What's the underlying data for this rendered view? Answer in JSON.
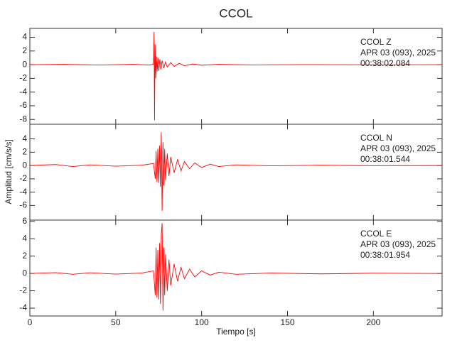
{
  "figure": {
    "title": "CCOL",
    "x_label": "Tiempo [s]",
    "y_label": "Amplitud [cm/s/s]"
  },
  "chart_data": [
    {
      "type": "line",
      "annotations": [
        "CCOL   Z",
        "APR 03 (093), 2025",
        "00:38:02.084"
      ],
      "xlim": [
        0,
        240
      ],
      "xticks": [
        0,
        50,
        100,
        150,
        200
      ],
      "ylim": [
        -8.7,
        5.3
      ],
      "yticks": [
        -8,
        -6,
        -4,
        -2,
        0,
        2,
        4
      ],
      "series": [
        {
          "color": "#ff0000",
          "x": [
            0,
            20,
            40,
            60,
            70,
            72,
            72.3,
            72.6,
            72.9,
            73.3,
            73.7,
            74.1,
            74.6,
            75.1,
            75.7,
            76.3,
            77,
            78,
            79,
            80,
            82,
            84,
            87,
            90,
            95,
            100,
            110,
            130,
            160,
            200,
            240
          ],
          "values": [
            0,
            0.05,
            -0.05,
            0.05,
            -0.05,
            0.1,
            4.8,
            -8.1,
            3,
            -2,
            1.2,
            -1,
            1,
            -0.9,
            0.8,
            -0.7,
            0.6,
            -0.5,
            0.4,
            -0.35,
            0.3,
            -0.25,
            0.2,
            -0.15,
            0.1,
            -0.08,
            0.05,
            -0.03,
            0.02,
            -0.02,
            0
          ]
        }
      ]
    },
    {
      "type": "line",
      "annotations": [
        "CCOL   N",
        "APR 03 (093), 2025",
        "00:38:01.544"
      ],
      "xlim": [
        0,
        240
      ],
      "xticks": [
        0,
        50,
        100,
        150,
        200
      ],
      "ylim": [
        -8.2,
        6.2
      ],
      "yticks": [
        -6,
        -4,
        -2,
        0,
        2,
        4
      ],
      "series": [
        {
          "color": "#ff0000",
          "x": [
            0,
            15,
            25,
            35,
            50,
            65,
            72,
            73,
            73.5,
            74,
            74.5,
            75,
            75.5,
            76,
            76.5,
            77,
            77.5,
            78,
            78.5,
            79,
            80,
            81,
            82,
            84,
            86,
            88,
            90,
            93,
            96,
            100,
            105,
            110,
            120,
            140,
            170,
            200,
            240
          ],
          "values": [
            0,
            0.15,
            -0.15,
            0.1,
            -0.1,
            0.05,
            0.3,
            -2,
            2.2,
            -2.5,
            2.5,
            -2.6,
            3,
            -3.2,
            5,
            -6.8,
            3.5,
            -3,
            2.5,
            -2.2,
            1.8,
            -1.6,
            1.3,
            -1.1,
            0.9,
            -0.8,
            0.6,
            -0.5,
            0.4,
            -0.3,
            0.2,
            -0.15,
            0.1,
            -0.05,
            0.05,
            -0.03,
            0
          ]
        }
      ]
    },
    {
      "type": "line",
      "annotations": [
        "CCOL   E",
        "APR 03 (093), 2025",
        "00:38:01.954"
      ],
      "xlim": [
        0,
        240
      ],
      "xticks": [
        0,
        50,
        100,
        150,
        200
      ],
      "ylim": [
        -4.9,
        6.15
      ],
      "yticks": [
        -4,
        -2,
        0,
        2,
        4,
        6
      ],
      "series": [
        {
          "color": "#ff0000",
          "x": [
            0,
            15,
            25,
            35,
            50,
            65,
            72,
            73,
            73.5,
            74,
            74.5,
            75,
            75.5,
            76,
            76.5,
            77,
            77.5,
            78,
            78.5,
            79,
            80,
            81,
            82,
            84,
            86,
            88,
            90,
            93,
            96,
            100,
            105,
            110,
            120,
            140,
            170,
            200,
            240
          ],
          "values": [
            0,
            0.1,
            -0.1,
            0.08,
            -0.08,
            0.05,
            0.3,
            -2.5,
            3,
            -2.8,
            2.7,
            -3,
            3.5,
            -3.5,
            4.5,
            5.8,
            -4.3,
            3,
            -2.5,
            2.2,
            -2,
            1.6,
            -1.4,
            1.1,
            -0.9,
            0.7,
            -0.6,
            0.5,
            -0.4,
            0.3,
            -0.2,
            0.15,
            -0.1,
            0.05,
            -0.05,
            0.03,
            0
          ]
        }
      ]
    }
  ]
}
